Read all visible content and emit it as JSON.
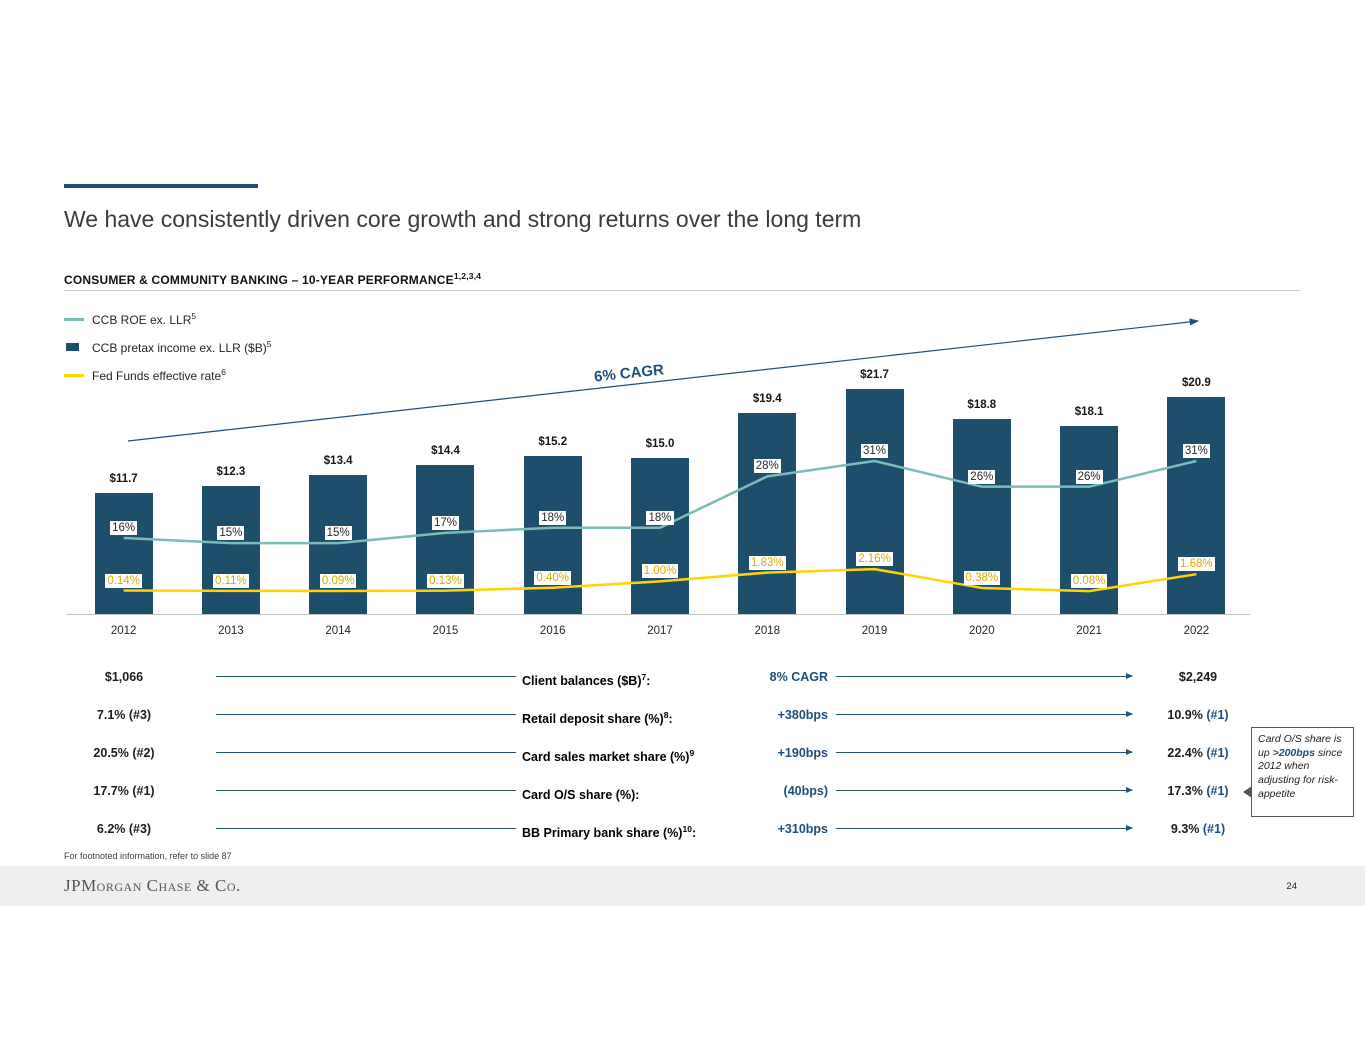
{
  "slide": {
    "title": "We have consistently driven core growth and strong returns over the long term",
    "section_header": "CONSUMER & COMMUNITY BANKING – 10-YEAR PERFORMANCE",
    "section_header_sup": "1,2,3,4",
    "footnote": "For footnoted information, refer to slide 87",
    "page_number": "24",
    "logo_text": "JPMorgan Chase & Co."
  },
  "legend": {
    "items": [
      {
        "label": "CCB ROE ex. LLR",
        "sup": "5",
        "swatch": "teal-line",
        "color": "#7abcb8"
      },
      {
        "label": "CCB pretax income ex. LLR ($B)",
        "sup": "5",
        "swatch": "navy-bar",
        "color": "#1d4e6b"
      },
      {
        "label": "Fed Funds effective rate",
        "sup": "6",
        "swatch": "yellow-line",
        "color": "#ffd400"
      }
    ]
  },
  "chart_data": {
    "type": "bar",
    "subtype": "bar-and-line combo",
    "title": "CONSUMER & COMMUNITY BANKING – 10-YEAR PERFORMANCE",
    "categories": [
      "2012",
      "2013",
      "2014",
      "2015",
      "2016",
      "2017",
      "2018",
      "2019",
      "2020",
      "2021",
      "2022"
    ],
    "series": [
      {
        "name": "CCB pretax income ex. LLR ($B)",
        "type": "bar",
        "color": "#1d4e6b",
        "values": [
          11.7,
          12.3,
          13.4,
          14.4,
          15.2,
          15.0,
          19.4,
          21.7,
          18.8,
          18.1,
          20.9
        ],
        "labels": [
          "$11.7",
          "$12.3",
          "$13.4",
          "$14.4",
          "$15.2",
          "$15.0",
          "$19.4",
          "$21.7",
          "$18.8",
          "$18.1",
          "$20.9"
        ]
      },
      {
        "name": "CCB ROE ex. LLR (%)",
        "type": "line",
        "color": "#7abcb8",
        "values": [
          16,
          15,
          15,
          17,
          18,
          18,
          28,
          31,
          26,
          26,
          31
        ],
        "labels": [
          "16%",
          "15%",
          "15%",
          "17%",
          "18%",
          "18%",
          "28%",
          "31%",
          "26%",
          "26%",
          "31%"
        ]
      },
      {
        "name": "Fed Funds effective rate (%)",
        "type": "line",
        "color": "#ffd400",
        "values": [
          0.14,
          0.11,
          0.09,
          0.13,
          0.4,
          1.0,
          1.83,
          2.16,
          0.38,
          0.08,
          1.68
        ],
        "labels": [
          "0.14%",
          "0.11%",
          "0.09%",
          "0.13%",
          "0.40%",
          "1.00%",
          "1.83%",
          "2.16%",
          "0.38%",
          "0.08%",
          "1.68%"
        ]
      }
    ],
    "annotation": "6% CAGR",
    "legend_position": "top-left",
    "grid": false,
    "ylim_bar": [
      0,
      21.7
    ]
  },
  "metrics": {
    "rows": [
      {
        "start": "$1,066",
        "label": "Client balances ($B)",
        "sup": "7",
        "colon": ":",
        "change": "8% CAGR",
        "end_value": "$2,249",
        "end_rank": ""
      },
      {
        "start": "7.1% (#3)",
        "label": "Retail deposit share (%)",
        "sup": "8",
        "colon": ":",
        "change": "+380bps",
        "end_value": "10.9%",
        "end_rank": "(#1)"
      },
      {
        "start": "20.5% (#2)",
        "label": "Card sales market share (%)",
        "sup": "9",
        "colon": "",
        "change": "+190bps",
        "end_value": "22.4%",
        "end_rank": "(#1)"
      },
      {
        "start": "17.7% (#1)",
        "label": "Card O/S share (%)",
        "sup": "",
        "colon": ":",
        "change": "(40bps)",
        "end_value": "17.3%",
        "end_rank": "(#1)"
      },
      {
        "start": "6.2% (#3)",
        "label": "BB Primary bank share (%)",
        "sup": "10",
        "colon": ":",
        "change": "+310bps",
        "end_value": "9.3%",
        "end_rank": "(#1)"
      }
    ]
  },
  "callout": {
    "pre": "Card O/S share is up ",
    "em": ">200bps",
    "post": " since 2012 when adjusting for risk-appetite"
  },
  "colors": {
    "navy_accent": "#1f4e79",
    "bar": "#1d4e6b",
    "teal": "#7abcb8",
    "yellow": "#ffd400",
    "yellow_text": "#d9ab00",
    "footer_gray": "#efefef"
  }
}
